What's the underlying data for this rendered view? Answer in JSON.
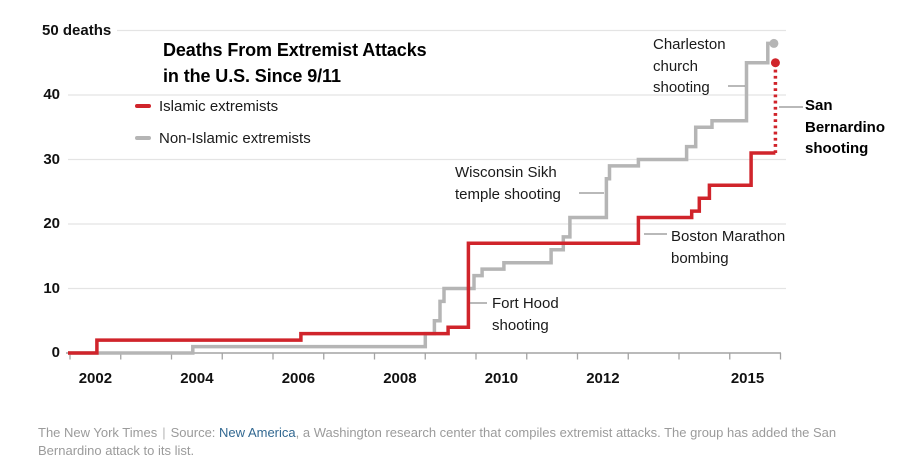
{
  "title": {
    "line1": "Deaths From Extremist Attacks",
    "line2": "in the U.S. Since 9/11"
  },
  "legend": [
    {
      "label": "Islamic extremists",
      "color": "#d0242b"
    },
    {
      "label": "Non-Islamic extremists",
      "color": "#b5b5b5"
    }
  ],
  "annotations": {
    "charleston": {
      "lines": [
        "Charleston",
        "church",
        "shooting"
      ]
    },
    "san_bernardino": {
      "lines": [
        "San",
        "Bernardino",
        "shooting"
      ]
    },
    "wisconsin": {
      "lines": [
        "Wisconsin Sikh",
        "temple shooting"
      ]
    },
    "boston": {
      "lines": [
        "Boston Marathon",
        "bombing"
      ]
    },
    "fort_hood": {
      "lines": [
        "Fort Hood",
        "shooting"
      ]
    }
  },
  "footer": {
    "brand": "The New York Times",
    "separator": "|",
    "source_label": "Source:",
    "source_link": "New America",
    "line1_rest": ", a Washington research center that compiles extremist attacks. The group has added the San",
    "line2": "Bernardino attack to its list."
  },
  "chart_data": {
    "type": "line",
    "subtype": "cumulative-step",
    "title": "Deaths From Extremist Attacks in the U.S. Since 9/11",
    "ylabel": "deaths",
    "x_range": [
      2001.96,
      2016
    ],
    "ylim": [
      0,
      50
    ],
    "grid": "horizontal",
    "legend_position": "top-left",
    "y_axis": {
      "ticks": [
        {
          "value": 0,
          "label": "0"
        },
        {
          "value": 10,
          "label": "10"
        },
        {
          "value": 20,
          "label": "20"
        },
        {
          "value": 30,
          "label": "30"
        },
        {
          "value": 40,
          "label": "40"
        },
        {
          "value": 50,
          "label": "50 deaths"
        }
      ]
    },
    "x_axis": {
      "tick_years": [
        2002,
        2003,
        2004,
        2005,
        2006,
        2007,
        2008,
        2009,
        2010,
        2011,
        2012,
        2013,
        2014,
        2015,
        2016
      ],
      "labels": [
        {
          "year": 2002.5,
          "label": "2002"
        },
        {
          "year": 2004.5,
          "label": "2004"
        },
        {
          "year": 2006.5,
          "label": "2006"
        },
        {
          "year": 2008.5,
          "label": "2008"
        },
        {
          "year": 2010.5,
          "label": "2010"
        },
        {
          "year": 2012.5,
          "label": "2012"
        },
        {
          "year": 2015.35,
          "label": "2015"
        }
      ]
    },
    "series": [
      {
        "name": "Islamic extremists",
        "color": "#d0242b",
        "start_year": 2001.96,
        "end_year": 2015.9,
        "steps": [
          [
            2002.53,
            2
          ],
          [
            2006.55,
            3
          ],
          [
            2009.45,
            4
          ],
          [
            2009.85,
            17
          ],
          [
            2013.2,
            21
          ],
          [
            2014.25,
            22
          ],
          [
            2014.4,
            24
          ],
          [
            2014.6,
            26
          ],
          [
            2015.42,
            31
          ]
        ],
        "dashed_segment": {
          "year": 2015.9,
          "from": 31,
          "to": 45,
          "note": "San Bernardino shooting"
        },
        "endpoint_dot": {
          "year": 2015.9,
          "value": 45
        }
      },
      {
        "name": "Non-Islamic extremists",
        "color": "#b5b5b5",
        "start_year": 2001.96,
        "end_year": 2015.87,
        "steps": [
          [
            2004.42,
            1
          ],
          [
            2009.0,
            3
          ],
          [
            2009.18,
            5
          ],
          [
            2009.29,
            8
          ],
          [
            2009.37,
            10
          ],
          [
            2009.96,
            12
          ],
          [
            2010.12,
            13
          ],
          [
            2010.55,
            14
          ],
          [
            2011.48,
            16
          ],
          [
            2011.72,
            18
          ],
          [
            2011.85,
            21
          ],
          [
            2012.57,
            27
          ],
          [
            2012.63,
            29
          ],
          [
            2013.2,
            30
          ],
          [
            2014.15,
            32
          ],
          [
            2014.33,
            35
          ],
          [
            2014.65,
            36
          ],
          [
            2015.33,
            45
          ],
          [
            2015.75,
            48
          ]
        ],
        "endpoint_dot": {
          "year": 2015.87,
          "value": 48
        }
      }
    ],
    "event_labels": [
      {
        "text": "Fort Hood shooting",
        "series": "Islamic extremists",
        "year": 2009.85
      },
      {
        "text": "Boston Marathon bombing",
        "series": "Islamic extremists",
        "year": 2013.2
      },
      {
        "text": "San Bernardino shooting",
        "series": "Islamic extremists",
        "year": 2015.9
      },
      {
        "text": "Wisconsin Sikh temple shooting",
        "series": "Non-Islamic extremists",
        "year": 2012.57
      },
      {
        "text": "Charleston church shooting",
        "series": "Non-Islamic extremists",
        "year": 2015.33
      }
    ]
  },
  "colors": {
    "gridline": "#e4e4e4",
    "axis": "#a3a3a3",
    "connector": "#8f8f8f",
    "text_dark": "#1a1a1a",
    "footer_gray": "#9b9b9b",
    "link_blue": "#326891"
  }
}
